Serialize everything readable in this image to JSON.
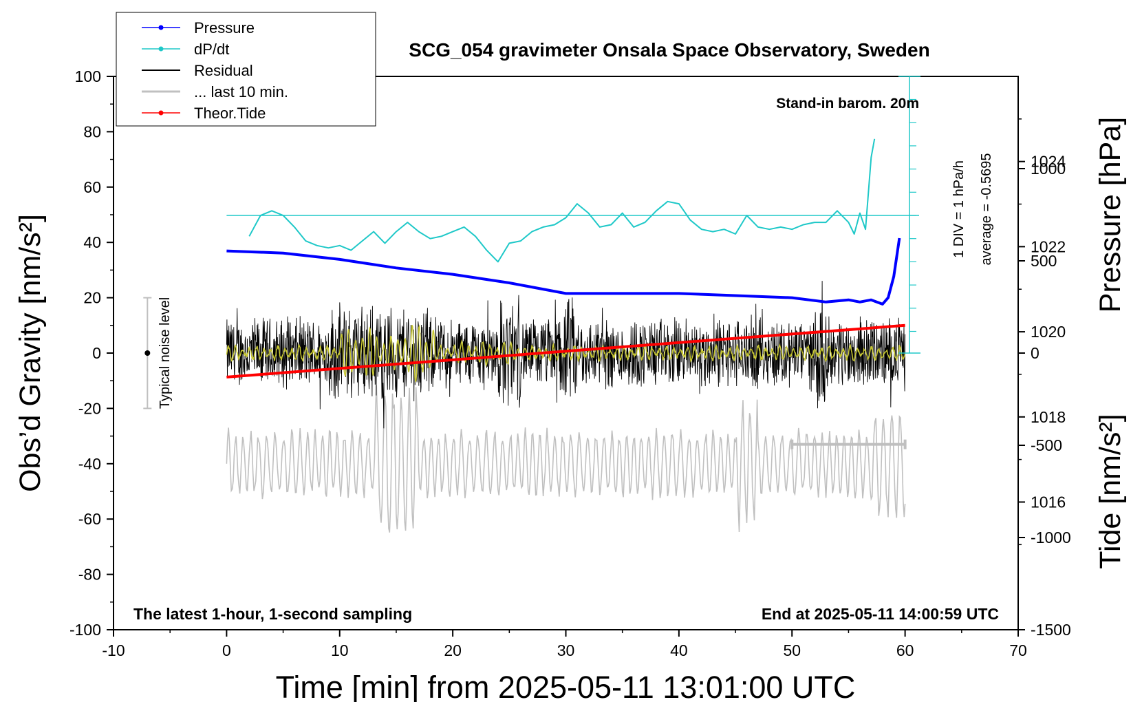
{
  "chart_data": {
    "type": "line",
    "title": "SCG_054 gravimeter Onsala Space Observatory, Sweden",
    "xlabel": "Time [min] from 2025-05-11 13:01:00 UTC",
    "ylabel_left": "Obs’d Gravity [nm/s²]",
    "ylabel_pressure": "Pressure [hPa]",
    "ylabel_tide": "Tide [nm/s²]",
    "xlim": [
      -10,
      70
    ],
    "ylim": [
      -100,
      100
    ],
    "pressure_lim": [
      1013,
      1026
    ],
    "tide_lim": [
      -1500,
      1500
    ],
    "x_ticks": [
      "-10",
      "0",
      "10",
      "20",
      "30",
      "40",
      "50",
      "60",
      "70"
    ],
    "y_ticks": [
      "-100",
      "-80",
      "-60",
      "-40",
      "-20",
      "0",
      "20",
      "40",
      "60",
      "80",
      "100"
    ],
    "pressure_ticks": [
      "1016",
      "1018",
      "1020",
      "1022",
      "1024"
    ],
    "tide_ticks": [
      "-1500",
      "-1000",
      "-500",
      "0",
      "500",
      "1000"
    ],
    "annotations": {
      "barometer": "Stand-in barom. 20m",
      "bottom_left": "The latest 1-hour, 1-second sampling",
      "bottom_right": "End at 2025-05-11 14:00:59 UTC",
      "div_label": "1 DIV = 1 hPa/h",
      "average_label": "average = -0.5695",
      "noise_label": "Typical noise level"
    },
    "legend": {
      "position": "top-left",
      "entries": [
        "Pressure",
        "dP/dt",
        "Residual",
        "... last 10 min.",
        "Theor.Tide"
      ]
    },
    "colors": {
      "pressure": "#0000ff",
      "dpdt": "#1ec8c8",
      "residual": "#000000",
      "last10": "#c0c0c0",
      "tide": "#ff0000",
      "smoothed": "#c8c832"
    },
    "series": [
      {
        "name": "Pressure",
        "axis": "pressure",
        "x": [
          0,
          5,
          10,
          15,
          20,
          25,
          30,
          35,
          40,
          45,
          50,
          53,
          55,
          56,
          57,
          58,
          58.5,
          59,
          59.5
        ],
        "values": [
          1021.9,
          1021.85,
          1021.7,
          1021.5,
          1021.35,
          1021.15,
          1020.9,
          1020.9,
          1020.9,
          1020.85,
          1020.8,
          1020.7,
          1020.75,
          1020.7,
          1020.75,
          1020.65,
          1020.8,
          1021.3,
          1022.2
        ]
      },
      {
        "name": "dP/dt",
        "axis": "dpdt",
        "x": [
          2,
          3,
          4,
          5,
          6,
          7,
          8,
          9,
          10,
          11,
          12,
          13,
          14,
          15,
          16,
          17,
          18,
          19,
          20,
          21,
          22,
          23,
          24,
          25,
          26,
          27,
          28,
          29,
          30,
          31,
          32,
          33,
          34,
          35,
          36,
          37,
          38,
          39,
          40,
          41,
          42,
          43,
          44,
          45,
          46,
          47,
          48,
          49,
          50,
          51,
          52,
          53,
          54,
          55,
          55.5,
          56,
          56.5,
          57,
          57.3
        ],
        "values": [
          -0.9,
          0.0,
          0.2,
          0.0,
          -0.5,
          -1.1,
          -1.3,
          -1.4,
          -1.3,
          -1.5,
          -1.1,
          -0.7,
          -1.2,
          -0.7,
          -0.3,
          -0.7,
          -1.0,
          -0.9,
          -0.7,
          -0.5,
          -0.9,
          -1.5,
          -2.0,
          -1.2,
          -1.1,
          -0.7,
          -0.5,
          -0.4,
          -0.1,
          0.5,
          0.1,
          -0.5,
          -0.4,
          0.1,
          -0.5,
          -0.3,
          0.2,
          0.6,
          0.5,
          -0.2,
          -0.6,
          -0.7,
          -0.6,
          -0.8,
          -0.0,
          -0.5,
          -0.6,
          -0.5,
          -0.6,
          -0.4,
          -0.3,
          -0.3,
          0.2,
          -0.3,
          -0.8,
          0.1,
          -0.6,
          2.5,
          3.3
        ]
      },
      {
        "name": "Residual",
        "axis": "gravity",
        "x": [
          0,
          60
        ],
        "note": "envelope",
        "values": [
          -25,
          25
        ]
      },
      {
        "name": "... last 10 min.",
        "axis": "tide",
        "x": [
          0,
          60
        ],
        "values": [
          -600,
          -600
        ]
      },
      {
        "name": "Theor.Tide",
        "axis": "tide",
        "x": [
          0,
          60
        ],
        "values": [
          -130,
          150
        ]
      }
    ],
    "scale_bar": {
      "x": [
        50,
        60
      ],
      "value": 0
    }
  }
}
